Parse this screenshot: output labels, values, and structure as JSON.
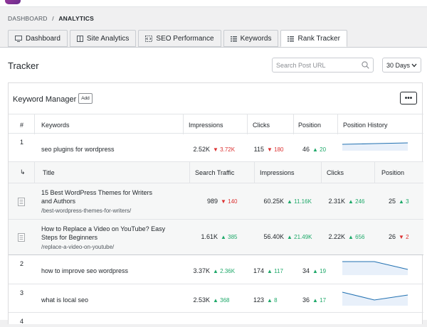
{
  "breadcrumb": {
    "root": "DASHBOARD",
    "sep": "/",
    "current": "ANALYTICS"
  },
  "tabs": [
    {
      "label": "Dashboard",
      "icon": "monitor-icon"
    },
    {
      "label": "Site Analytics",
      "icon": "columns-icon"
    },
    {
      "label": "SEO Performance",
      "icon": "code-icon"
    },
    {
      "label": "Keywords",
      "icon": "list-icon"
    },
    {
      "label": "Rank Tracker",
      "icon": "list-icon",
      "active": true
    }
  ],
  "page_title": "Tracker",
  "search": {
    "placeholder": "Search Post URL"
  },
  "range": {
    "value": "30 Days"
  },
  "card": {
    "title": "Keyword Manager",
    "add_label": "Add",
    "more_label": "•••"
  },
  "columns": [
    "#",
    "Keywords",
    "Impressions",
    "Clicks",
    "Position",
    "Position History"
  ],
  "sub_columns": [
    "↳",
    "Title",
    "Search Traffic",
    "Impressions",
    "Clicks",
    "Position"
  ],
  "keywords": [
    {
      "num": "1",
      "keyword": "seo plugins for wordpress",
      "impressions": "2.52K",
      "imp_delta": "▼ 3.72K",
      "imp_dir": "down",
      "clicks": "115",
      "clk_delta": "▼ 180",
      "clk_dir": "down",
      "position": "46",
      "pos_delta": "▲ 20",
      "pos_dir": "up"
    },
    {
      "num": "2",
      "keyword": "how to improve seo wordpress",
      "impressions": "3.37K",
      "imp_delta": "▲ 2.36K",
      "imp_dir": "up",
      "clicks": "174",
      "clk_delta": "▲ 117",
      "clk_dir": "up",
      "position": "34",
      "pos_delta": "▲ 19",
      "pos_dir": "up"
    },
    {
      "num": "3",
      "keyword": "what is local seo",
      "impressions": "2.53K",
      "imp_delta": "▲ 368",
      "imp_dir": "up",
      "clicks": "123",
      "clk_delta": "▲ 8",
      "clk_dir": "up",
      "position": "36",
      "pos_delta": "▲ 17",
      "pos_dir": "up"
    },
    {
      "num": "4"
    }
  ],
  "pages": [
    {
      "title": "15 Best WordPress Themes for Writers and Authors",
      "url": "/best-wordpress-themes-for-writers/",
      "traffic": "989",
      "traffic_delta": "▼ 140",
      "traffic_dir": "down",
      "impressions": "60.25K",
      "imp_delta": "▲ 11.16K",
      "imp_dir": "up",
      "clicks": "2.31K",
      "clk_delta": "▲ 246",
      "clk_dir": "up",
      "position": "25",
      "pos_delta": "▲ 3",
      "pos_dir": "up"
    },
    {
      "title": "How to Replace a Video on YouTube? Easy Steps for Beginners",
      "url": "/replace-a-video-on-youtube/",
      "traffic": "1.61K",
      "traffic_delta": "▲ 385",
      "traffic_dir": "up",
      "impressions": "56.40K",
      "imp_delta": "▲ 21.49K",
      "imp_dir": "up",
      "clicks": "2.22K",
      "clk_delta": "▲ 656",
      "clk_dir": "up",
      "position": "26",
      "pos_delta": "▼ 2",
      "pos_dir": "down"
    }
  ],
  "colors": {
    "up": "#1fa96a",
    "down": "#dc3232",
    "spark": "#2271b1",
    "spark_fill": "#e8f0fa"
  }
}
